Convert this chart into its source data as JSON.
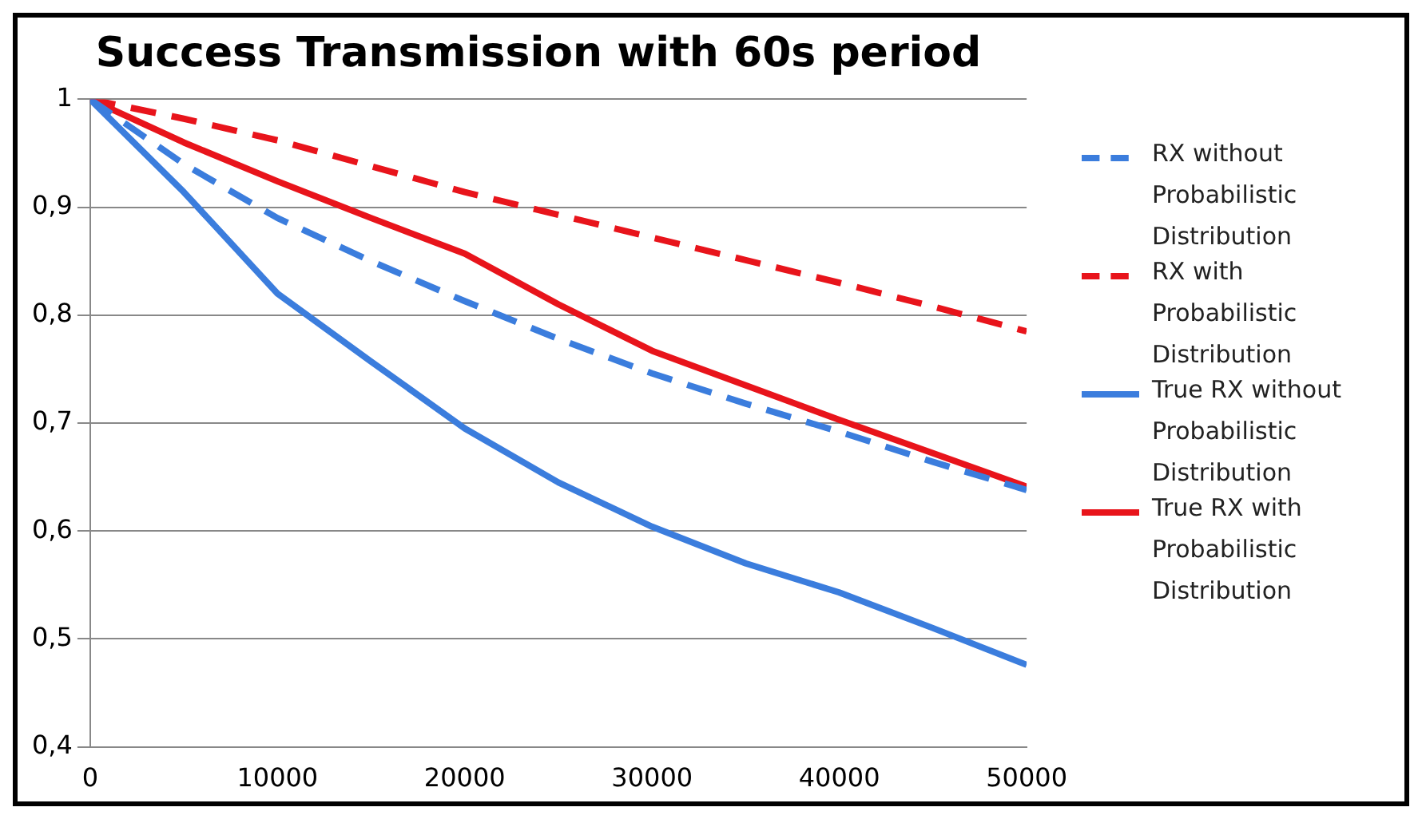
{
  "chart_data": {
    "type": "line",
    "title": "Success Transmission with 60s period",
    "x": [
      0,
      5000,
      10000,
      15000,
      20000,
      25000,
      30000,
      35000,
      40000,
      45000,
      50000
    ],
    "series": [
      {
        "name": "RX without Probabilistic Distribution",
        "color": "#3b7ddd",
        "line_style": "dashed",
        "values": [
          1,
          0.94,
          0.89,
          0.85,
          0.813,
          0.778,
          0.746,
          0.718,
          0.692,
          0.664,
          0.638
        ]
      },
      {
        "name": "RX with Probabilistic Distribution",
        "color": "#e8141b",
        "line_style": "dashed",
        "values": [
          1,
          0.982,
          0.962,
          0.938,
          0.914,
          0.893,
          0.872,
          0.851,
          0.83,
          0.808,
          0.785
        ]
      },
      {
        "name": "True RX without Probabilistic Distribution",
        "color": "#3b7ddd",
        "line_style": "solid",
        "values": [
          1,
          0.914,
          0.82,
          0.757,
          0.695,
          0.645,
          0.604,
          0.57,
          0.543,
          0.51,
          0.476
        ]
      },
      {
        "name": "True RX with Probabilistic Distribution",
        "color": "#e8141b",
        "line_style": "solid",
        "values": [
          1,
          0.96,
          0.924,
          0.89,
          0.857,
          0.81,
          0.767,
          0.735,
          0.703,
          0.672,
          0.641
        ]
      }
    ],
    "xlim": [
      0,
      50000
    ],
    "xticks": [
      0,
      10000,
      20000,
      30000,
      40000,
      50000
    ],
    "ylim": [
      0.4,
      1
    ],
    "yticks": [
      {
        "value": 0.4,
        "label": "0,4"
      },
      {
        "value": 0.5,
        "label": "0,5"
      },
      {
        "value": 0.6,
        "label": "0,6"
      },
      {
        "value": 0.7,
        "label": "0,7"
      },
      {
        "value": 0.8,
        "label": "0,8"
      },
      {
        "value": 0.9,
        "label": "0,9"
      },
      1
    ],
    "grid": "y",
    "legend": "right",
    "marker": "none"
  }
}
